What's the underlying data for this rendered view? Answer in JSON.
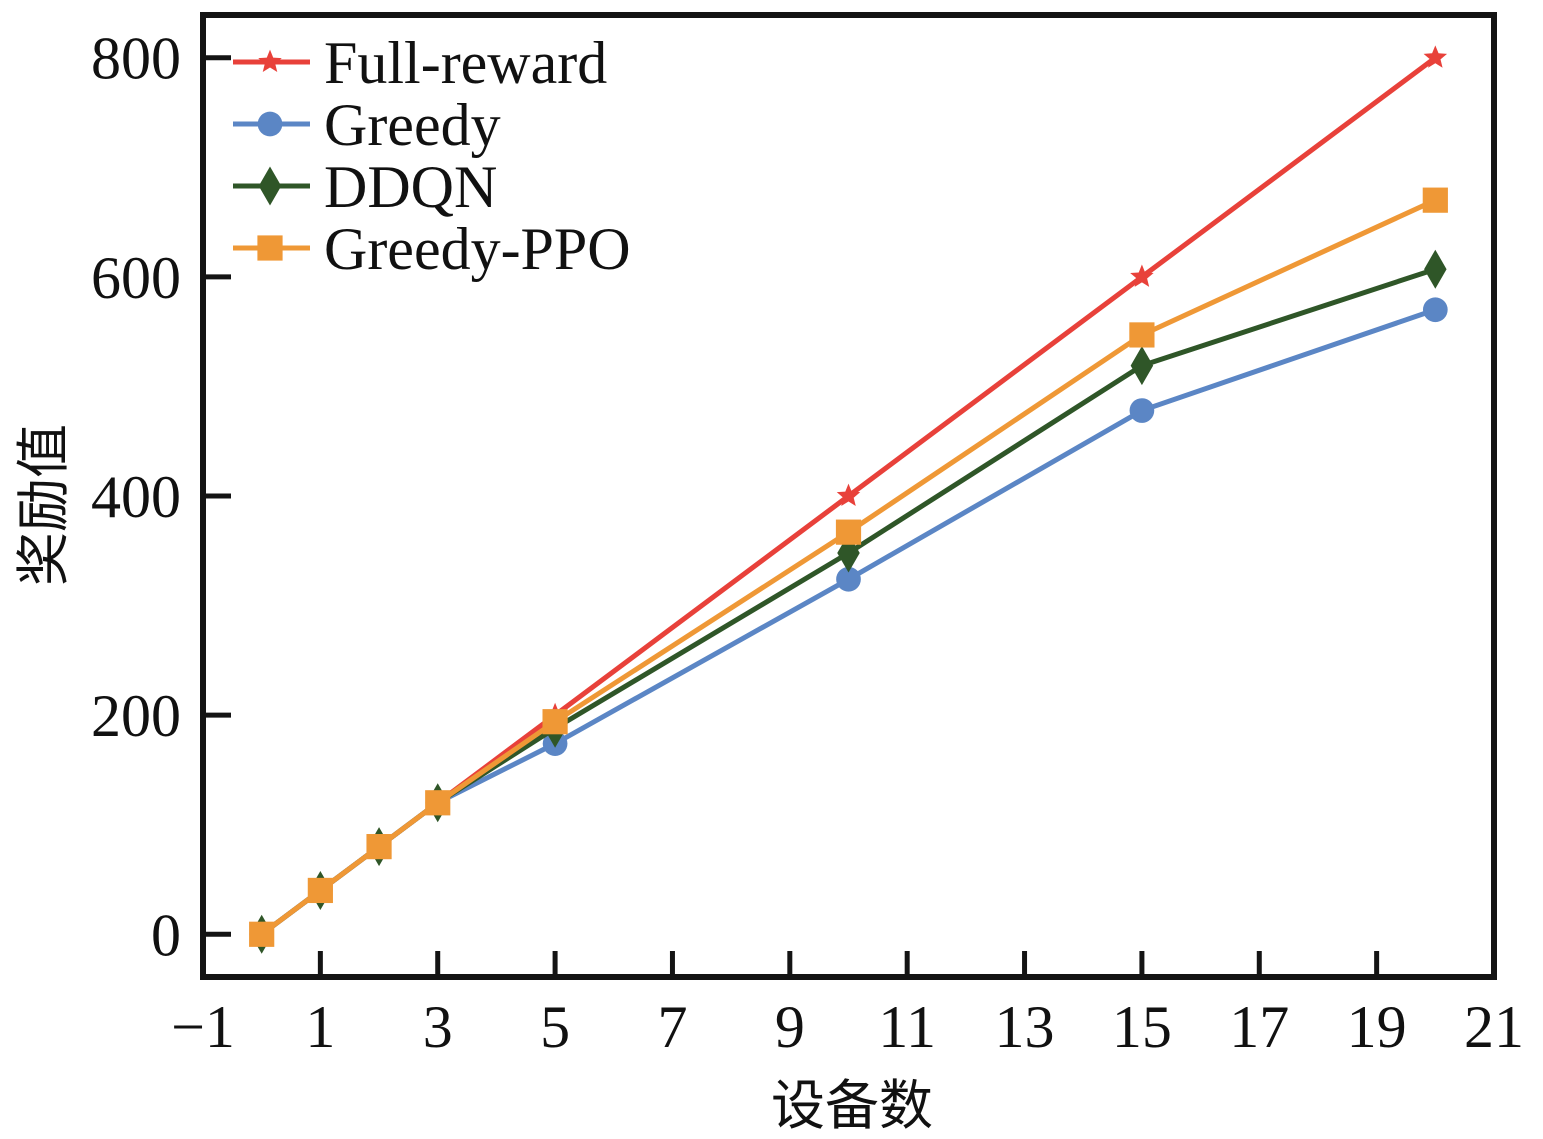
{
  "chart_data": {
    "type": "line",
    "title": "",
    "xlabel": "设备数",
    "ylabel": "奖励值",
    "xlim": [
      -1,
      21
    ],
    "ylim": [
      -39,
      839
    ],
    "xticks": [
      -1,
      1,
      3,
      5,
      7,
      9,
      11,
      13,
      15,
      17,
      19,
      21
    ],
    "xtick_labels": [
      "−1",
      "1",
      "3",
      "5",
      "7",
      "9",
      "11",
      "13",
      "15",
      "17",
      "19",
      "21"
    ],
    "yticks": [
      0,
      200,
      400,
      600,
      800
    ],
    "ytick_labels": [
      "0",
      "200",
      "400",
      "600",
      "800"
    ],
    "grid": false,
    "legend_position": "top-left",
    "x": [
      0,
      1,
      2,
      3,
      5,
      10,
      15,
      20
    ],
    "series": [
      {
        "name": "Full-reward",
        "color": "#e8413a",
        "marker": "star",
        "values": [
          0,
          40,
          80,
          120,
          200,
          400,
          600,
          800
        ]
      },
      {
        "name": "Greedy",
        "color": "#5b86c5",
        "marker": "circle",
        "values": [
          0,
          40,
          80,
          120,
          174,
          324,
          478,
          570
        ]
      },
      {
        "name": "DDQN",
        "color": "#2f5628",
        "marker": "diamond",
        "values": [
          0,
          40,
          80,
          120,
          188,
          348,
          519,
          607
        ]
      },
      {
        "name": "Greedy-PPO",
        "color": "#ef9836",
        "marker": "square",
        "values": [
          0,
          40,
          80,
          120,
          194,
          367,
          547,
          670
        ]
      }
    ]
  }
}
